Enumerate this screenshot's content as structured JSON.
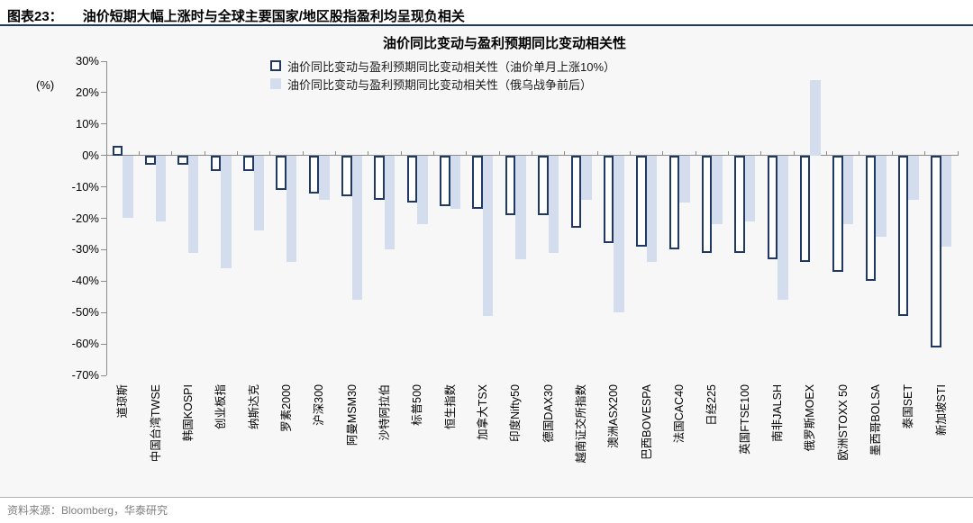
{
  "header": {
    "figure_label": "图表23：",
    "figure_title": "油价短期大幅上涨时与全球主要国家/地区股指盈利均呈现负相关"
  },
  "footer": {
    "source": "资料来源：Bloomberg，华泰研究"
  },
  "colors": {
    "accent_navy": "#1f3864",
    "light_bar_fill": "#d3ddee",
    "axis_gray": "#8c8c8c",
    "panel_bg": "#f7f7f8",
    "source_gray": "#7f7f7f"
  },
  "chart_data": {
    "type": "bar",
    "title": "油价同比变动与盈利预期同比变动相关性",
    "ylabel": "(%)",
    "ylim": [
      -70,
      30
    ],
    "ytick_step": 10,
    "grid": false,
    "legend_position": "top",
    "categories": [
      "道琼斯",
      "中国台湾TWSE",
      "韩国KOSPI",
      "创业板指",
      "纳斯达克",
      "罗素2000",
      "沪深300",
      "阿曼MSM30",
      "沙特阿拉伯",
      "标普500",
      "恒生指数",
      "加拿大TSX",
      "印度Nifty50",
      "德国DAX30",
      "越南证交所指数",
      "澳洲ASX200",
      "巴西BOVESPA",
      "法国CAC40",
      "日经225",
      "英国FTSE100",
      "南非JALSH",
      "俄罗斯MOEX",
      "欧洲STOXX 50",
      "墨西哥BOLSA",
      "泰国SET",
      "新加坡STI"
    ],
    "series": [
      {
        "name": "油价同比变动与盈利预期同比变动相关性（油价单月上涨10%）",
        "style": "hollow",
        "color": "#1f3864",
        "values": [
          3,
          -3,
          -3,
          -5,
          -5,
          -11,
          -12,
          -13,
          -14,
          -15,
          -16,
          -17,
          -19,
          -19,
          -23,
          -28,
          -29,
          -30,
          -31,
          -31,
          -33,
          -34,
          -37,
          -40,
          -51,
          -61
        ]
      },
      {
        "name": "油价同比变动与盈利预期同比变动相关性（俄乌战争前后）",
        "style": "solid",
        "color": "#d3ddee",
        "values": [
          -20,
          -21,
          -31,
          -36,
          -24,
          -34,
          -14,
          -46,
          -30,
          -22,
          -17,
          -51,
          -33,
          -31,
          -14,
          -50,
          -34,
          -15,
          -22,
          -21,
          -46,
          24,
          -22,
          -26,
          -14,
          -29
        ]
      }
    ]
  }
}
